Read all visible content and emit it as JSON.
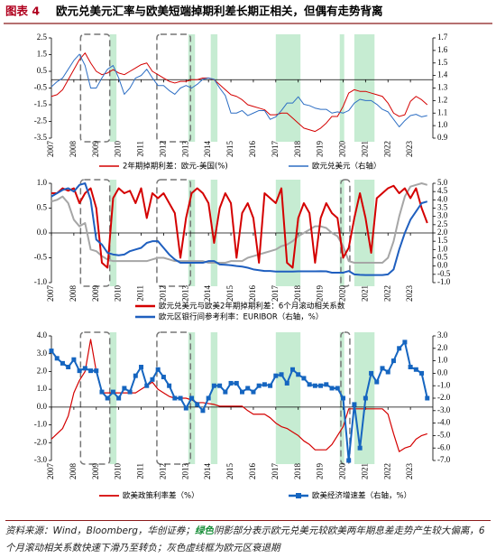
{
  "title": {
    "label": "图表 4",
    "text": "欧元兑美元汇率与欧美短端掉期利差长期正相关，但偶有走势背离"
  },
  "source": {
    "prefix": "资料来源：Wind，Bloomberg，华创证券；",
    "highlight": "绿色",
    "rest": "阴影部分表示欧元兑美元较欧美两年期息差走势产生较大偏离，6个月滚动相关系数快速下滑乃至转负；灰色虚线框为欧元区衰退期"
  },
  "chart_data": [
    {
      "type": "line",
      "legend_layout": "row",
      "xlim": [
        2007,
        2024
      ],
      "xticks": [
        2007,
        2008,
        2009,
        2010,
        2011,
        2012,
        2013,
        2014,
        2015,
        2016,
        2017,
        2018,
        2019,
        2020,
        2021,
        2022,
        2023
      ],
      "ylim": [
        -3.5,
        2.5
      ],
      "yticks": [
        -3.5,
        -2.5,
        -1.5,
        -0.5,
        0.5,
        1.5,
        2.5
      ],
      "y2lim": [
        0.9,
        1.7
      ],
      "y2ticks": [
        0.9,
        {
          "value": 1,
          "label": "1.0"
        },
        1.1,
        1.2,
        1.3,
        1.4,
        1.5,
        1.6,
        1.7
      ],
      "shaded": [
        [
          2009.6,
          2009.9
        ],
        [
          2013.1,
          2013.4
        ],
        [
          2014.1,
          2014.4
        ],
        [
          2017.0,
          2018.1
        ],
        [
          2019.85,
          2020.05
        ],
        [
          2020.5,
          2021.4
        ]
      ],
      "dashed_boxes": [
        [
          2008.3,
          2009.6
        ],
        [
          2011.7,
          2013.2
        ]
      ],
      "x": [
        2007,
        2007.25,
        2007.5,
        2007.75,
        2008,
        2008.25,
        2008.5,
        2008.75,
        2009,
        2009.25,
        2009.5,
        2009.75,
        2010,
        2010.25,
        2010.5,
        2010.75,
        2011,
        2011.25,
        2011.5,
        2011.75,
        2012,
        2012.25,
        2012.5,
        2012.75,
        2013,
        2013.25,
        2013.5,
        2013.75,
        2014,
        2014.25,
        2014.5,
        2014.75,
        2015,
        2015.25,
        2015.5,
        2015.75,
        2016,
        2016.25,
        2016.5,
        2016.75,
        2017,
        2017.25,
        2017.5,
        2017.75,
        2018,
        2018.25,
        2018.5,
        2018.75,
        2019,
        2019.25,
        2019.5,
        2019.75,
        2020,
        2020.25,
        2020.5,
        2020.75,
        2021,
        2021.25,
        2021.5,
        2021.75,
        2022,
        2022.25,
        2022.5,
        2022.75,
        2023,
        2023.25,
        2023.5,
        2023.75
      ],
      "series": [
        {
          "name": "2年期掉期利差：欧元-美国(%)",
          "color": "#d40000",
          "width": 1,
          "values": [
            -1.0,
            -0.9,
            -0.6,
            0.0,
            0.6,
            1.2,
            1.6,
            1.0,
            0.5,
            0.3,
            0.4,
            0.6,
            0.4,
            0.3,
            0.5,
            0.7,
            0.9,
            1.0,
            0.5,
            0.3,
            0.1,
            -0.1,
            -0.2,
            -0.1,
            -0.1,
            0.0,
            0.0,
            0.1,
            0.1,
            0.0,
            -0.3,
            -0.6,
            -0.9,
            -1.0,
            -1.2,
            -1.5,
            -1.6,
            -1.7,
            -1.8,
            -2.1,
            -2.1,
            -2.0,
            -2.0,
            -2.3,
            -2.6,
            -2.9,
            -3.0,
            -3.1,
            -2.9,
            -2.6,
            -2.2,
            -2.2,
            -1.6,
            -0.8,
            -0.6,
            -0.7,
            -0.7,
            -0.8,
            -0.9,
            -1.0,
            -1.4,
            -2.0,
            -2.2,
            -2.1,
            -1.3,
            -1.0,
            -1.2,
            -1.5
          ]
        },
        {
          "name": "欧元兑美元（右轴）",
          "color": "#2e6fc4",
          "width": 1,
          "axis": "y2",
          "values": [
            1.31,
            1.35,
            1.38,
            1.45,
            1.52,
            1.57,
            1.48,
            1.3,
            1.3,
            1.38,
            1.45,
            1.48,
            1.38,
            1.25,
            1.3,
            1.38,
            1.4,
            1.45,
            1.38,
            1.32,
            1.32,
            1.28,
            1.25,
            1.3,
            1.32,
            1.3,
            1.33,
            1.37,
            1.38,
            1.37,
            1.3,
            1.24,
            1.1,
            1.1,
            1.12,
            1.08,
            1.1,
            1.12,
            1.12,
            1.05,
            1.07,
            1.12,
            1.18,
            1.18,
            1.23,
            1.17,
            1.16,
            1.14,
            1.13,
            1.13,
            1.1,
            1.11,
            1.1,
            1.12,
            1.18,
            1.21,
            1.2,
            1.2,
            1.17,
            1.13,
            1.11,
            1.05,
            0.99,
            1.04,
            1.08,
            1.09,
            1.07,
            1.08
          ]
        }
      ]
    },
    {
      "type": "line",
      "legend_layout": "column",
      "xlim": [
        2007,
        2024
      ],
      "xticks": [
        2007,
        2008,
        2009,
        2010,
        2011,
        2012,
        2013,
        2014,
        2015,
        2016,
        2017,
        2018,
        2019,
        2020,
        2021,
        2022,
        2023
      ],
      "ylim": [
        -1,
        1
      ],
      "yticks": [
        {
          "value": -1,
          "label": "-1.0"
        },
        -0.5,
        {
          "value": 0,
          "label": "0.0"
        },
        0.5,
        {
          "value": 1,
          "label": "1.0"
        }
      ],
      "y2lim": [
        -1,
        5
      ],
      "y2ticks": [
        {
          "value": -1,
          "label": "-1.0"
        },
        -0.5,
        {
          "value": 0,
          "label": "0.0"
        },
        0.5,
        {
          "value": 1,
          "label": "1.0"
        },
        1.5,
        {
          "value": 2,
          "label": "2.0"
        },
        2.5,
        {
          "value": 3,
          "label": "3.0"
        },
        3.5,
        {
          "value": 4,
          "label": "4.0"
        },
        4.5,
        {
          "value": 5,
          "label": "5.0"
        }
      ],
      "shaded": [
        [
          2009.6,
          2009.9
        ],
        [
          2013.1,
          2013.4
        ],
        [
          2014.1,
          2014.4
        ],
        [
          2017.0,
          2018.1
        ],
        [
          2019.85,
          2020.05
        ],
        [
          2020.5,
          2021.4
        ]
      ],
      "dashed_boxes": [
        [
          2008.3,
          2009.6
        ],
        [
          2011.7,
          2013.2
        ],
        [
          2019.9,
          2020.3
        ]
      ],
      "x": [
        2007,
        2007.25,
        2007.5,
        2007.75,
        2008,
        2008.25,
        2008.5,
        2008.75,
        2009,
        2009.25,
        2009.5,
        2009.75,
        2010,
        2010.25,
        2010.5,
        2010.75,
        2011,
        2011.25,
        2011.5,
        2011.75,
        2012,
        2012.25,
        2012.5,
        2012.75,
        2013,
        2013.25,
        2013.5,
        2013.75,
        2014,
        2014.25,
        2014.5,
        2014.75,
        2015,
        2015.25,
        2015.5,
        2015.75,
        2016,
        2016.25,
        2016.5,
        2016.75,
        2017,
        2017.25,
        2017.5,
        2017.75,
        2018,
        2018.25,
        2018.5,
        2018.75,
        2019,
        2019.25,
        2019.5,
        2019.75,
        2020,
        2020.25,
        2020.5,
        2020.75,
        2021,
        2021.25,
        2021.5,
        2021.75,
        2022,
        2022.25,
        2022.5,
        2022.75,
        2023,
        2023.25,
        2023.5,
        2023.75
      ],
      "series": [
        {
          "color": "#a6a6a6",
          "width": 2,
          "axis": "y2",
          "values": [
            3.9,
            4.0,
            4.2,
            3.8,
            2.8,
            2.4,
            2.6,
            1.0,
            0.9,
            0.6,
            0.4,
            0.3,
            0.3,
            0.3,
            0.3,
            0.3,
            0.3,
            0.3,
            0.4,
            0.5,
            0.5,
            0.4,
            0.3,
            0.3,
            0.3,
            0.3,
            0.3,
            0.3,
            0.2,
            0.2,
            0.2,
            0.2,
            0.3,
            0.3,
            0.3,
            0.5,
            0.6,
            0.7,
            0.8,
            0.9,
            1.0,
            1.2,
            1.3,
            1.5,
            1.8,
            2.0,
            2.2,
            2.4,
            2.4,
            2.3,
            2.0,
            1.8,
            1.2,
            0.3,
            0.2,
            0.2,
            0.2,
            0.2,
            0.2,
            0.2,
            0.5,
            1.5,
            3.0,
            4.2,
            4.8,
            4.9,
            5.0,
            4.9
          ]
        },
        {
          "name": "欧元兑美元与欧美2年期掉期利差：6个月滚动相关系数",
          "color": "#d40000",
          "width": 2,
          "values": [
            0.8,
            0.8,
            0.9,
            0.85,
            0.9,
            0.6,
            0.8,
            0.9,
            0.5,
            -0.6,
            -0.7,
            0.7,
            0.9,
            0.8,
            0.85,
            0.6,
            0.9,
            0.3,
            0.8,
            0.7,
            0.8,
            0.6,
            0.4,
            -0.5,
            0.3,
            0.8,
            0.9,
            0.8,
            0.6,
            -0.2,
            0.5,
            0.8,
            0.6,
            -0.5,
            0.4,
            0.6,
            0.3,
            -0.6,
            0.8,
            0.7,
            0.6,
            0.9,
            -0.6,
            -0.7,
            0.3,
            0.6,
            0.4,
            -0.6,
            0.3,
            0.6,
            0.4,
            0.3,
            -0.5,
            -0.3,
            0.3,
            0.8,
            0.3,
            -0.4,
            0.7,
            0.8,
            0.9,
            0.95,
            0.8,
            0.9,
            0.7,
            0.9,
            0.5,
            0.2
          ]
        },
        {
          "name": "欧元区银行间参考利率：EURIBOR（右轴，%）",
          "color": "#1f5fbf",
          "width": 2,
          "axis": "y2",
          "values": [
            4.2,
            4.4,
            4.6,
            4.7,
            4.5,
            4.9,
            5.0,
            4.0,
            1.6,
            1.3,
            0.8,
            0.7,
            0.65,
            0.7,
            0.9,
            1.0,
            1.1,
            1.4,
            1.5,
            1.5,
            1.1,
            0.7,
            0.4,
            0.2,
            0.2,
            0.2,
            0.2,
            0.2,
            0.3,
            0.3,
            0.1,
            0.08,
            0.05,
            0.0,
            -0.03,
            -0.1,
            -0.2,
            -0.25,
            -0.3,
            -0.3,
            -0.33,
            -0.33,
            -0.33,
            -0.33,
            -0.32,
            -0.32,
            -0.32,
            -0.32,
            -0.31,
            -0.32,
            -0.4,
            -0.4,
            -0.4,
            -0.3,
            -0.5,
            -0.53,
            -0.54,
            -0.54,
            -0.54,
            -0.54,
            -0.5,
            -0.2,
            1.0,
            2.0,
            2.8,
            3.3,
            3.8,
            3.9
          ]
        }
      ]
    },
    {
      "type": "line",
      "legend_layout": "row",
      "xlim": [
        2007,
        2024
      ],
      "xticks": [
        2007,
        2008,
        2009,
        2010,
        2011,
        2012,
        2013,
        2014,
        2015,
        2016,
        2017,
        2018,
        2019,
        2020,
        2021,
        2022,
        2023
      ],
      "ylim": [
        -3,
        4
      ],
      "yticks": [
        {
          "value": -3,
          "label": "-3.0"
        },
        {
          "value": -2,
          "label": "-2.0"
        },
        {
          "value": -1,
          "label": "-1.0"
        },
        {
          "value": 0,
          "label": "0.0"
        },
        {
          "value": 1,
          "label": "1.0"
        },
        {
          "value": 2,
          "label": "2.0"
        },
        {
          "value": 3,
          "label": "3.0"
        },
        {
          "value": 4,
          "label": "4.0"
        }
      ],
      "y2lim": [
        -7,
        3
      ],
      "y2ticks": [
        {
          "value": -7,
          "label": "-7.0"
        },
        {
          "value": -6,
          "label": "-6.0"
        },
        {
          "value": -5,
          "label": "-5.0"
        },
        {
          "value": -4,
          "label": "-4.0"
        },
        {
          "value": -3,
          "label": "-3.0"
        },
        {
          "value": -2,
          "label": "-2.0"
        },
        {
          "value": -1,
          "label": "-1.0"
        },
        {
          "value": 0,
          "label": "0.0"
        },
        {
          "value": 1,
          "label": "1.0"
        },
        {
          "value": 2,
          "label": "2.0"
        },
        {
          "value": 3,
          "label": "3.0"
        }
      ],
      "shaded": [
        [
          2009.6,
          2009.9
        ],
        [
          2013.1,
          2013.4
        ],
        [
          2014.1,
          2014.4
        ],
        [
          2017.0,
          2018.1
        ],
        [
          2019.85,
          2020.05
        ],
        [
          2020.5,
          2021.4
        ]
      ],
      "dashed_boxes": [
        [
          2008.3,
          2009.6
        ],
        [
          2011.7,
          2013.2
        ],
        [
          2019.9,
          2020.3
        ]
      ],
      "x": [
        2007,
        2007.25,
        2007.5,
        2007.75,
        2008,
        2008.25,
        2008.5,
        2008.75,
        2009,
        2009.25,
        2009.5,
        2009.75,
        2010,
        2010.25,
        2010.5,
        2010.75,
        2011,
        2011.25,
        2011.5,
        2011.75,
        2012,
        2012.25,
        2012.5,
        2012.75,
        2013,
        2013.25,
        2013.5,
        2013.75,
        2014,
        2014.25,
        2014.5,
        2014.75,
        2015,
        2015.25,
        2015.5,
        2015.75,
        2016,
        2016.25,
        2016.5,
        2016.75,
        2017,
        2017.25,
        2017.5,
        2017.75,
        2018,
        2018.25,
        2018.5,
        2018.75,
        2019,
        2019.25,
        2019.5,
        2019.75,
        2020,
        2020.25,
        2020.5,
        2020.75,
        2021,
        2021.25,
        2021.5,
        2021.75,
        2022,
        2022.25,
        2022.5,
        2022.75,
        2023,
        2023.25,
        2023.5,
        2023.75
      ],
      "series": [
        {
          "name": "欧美政策利率差（%）",
          "color": "#d40000",
          "width": 1.2,
          "values": [
            -1.8,
            -1.5,
            -1.2,
            -0.5,
            0.8,
            1.5,
            2.0,
            3.8,
            2.0,
            0.8,
            0.8,
            0.8,
            0.8,
            0.8,
            0.8,
            0.8,
            1.0,
            1.2,
            1.4,
            1.0,
            0.8,
            0.6,
            0.5,
            0.5,
            0.5,
            0.4,
            0.25,
            0.25,
            0.2,
            0.15,
            0.05,
            0.05,
            0.05,
            0.05,
            0.05,
            -0.2,
            -0.4,
            -0.4,
            -0.4,
            -0.6,
            -0.9,
            -1.1,
            -1.2,
            -1.4,
            -1.6,
            -1.9,
            -2.1,
            -2.4,
            -2.4,
            -2.4,
            -2.1,
            -1.6,
            -1.1,
            -0.1,
            -0.1,
            -0.1,
            -0.1,
            -0.1,
            -0.1,
            -0.1,
            -0.4,
            -1.5,
            -2.5,
            -2.3,
            -2.2,
            -1.8,
            -1.6,
            -1.5
          ]
        },
        {
          "name": "欧美经济增速差（右轴，%）",
          "color": "#1565c0",
          "width": 2,
          "axis": "y2",
          "marker": "square",
          "values": [
            1.8,
            1.2,
            0.8,
            0.5,
            1.1,
            0.2,
            0.4,
            0.2,
            0.2,
            -1.5,
            -2.0,
            -1.5,
            -2.0,
            -1.2,
            -1.5,
            -0.2,
            0.5,
            -1.0,
            -0.5,
            0.3,
            -0.3,
            -1.0,
            -2.0,
            -2.0,
            -2.8,
            -2.0,
            -2.5,
            -3.0,
            -2.0,
            -1.0,
            -1.0,
            -1.5,
            -0.8,
            -0.8,
            -1.5,
            -1.2,
            -1.5,
            -1.0,
            -0.9,
            -1.0,
            -0.2,
            -0.1,
            -0.8,
            0.3,
            -0.1,
            -0.4,
            -0.9,
            -1.0,
            -1.0,
            -0.9,
            -1.2,
            -1.2,
            -2.0,
            -7.0,
            -2.5,
            -6.0,
            -2.0,
            0.0,
            -0.7,
            0.4,
            0.1,
            1.0,
            2.0,
            2.5,
            0.5,
            0.3,
            0.0,
            -2.0
          ]
        }
      ]
    }
  ]
}
